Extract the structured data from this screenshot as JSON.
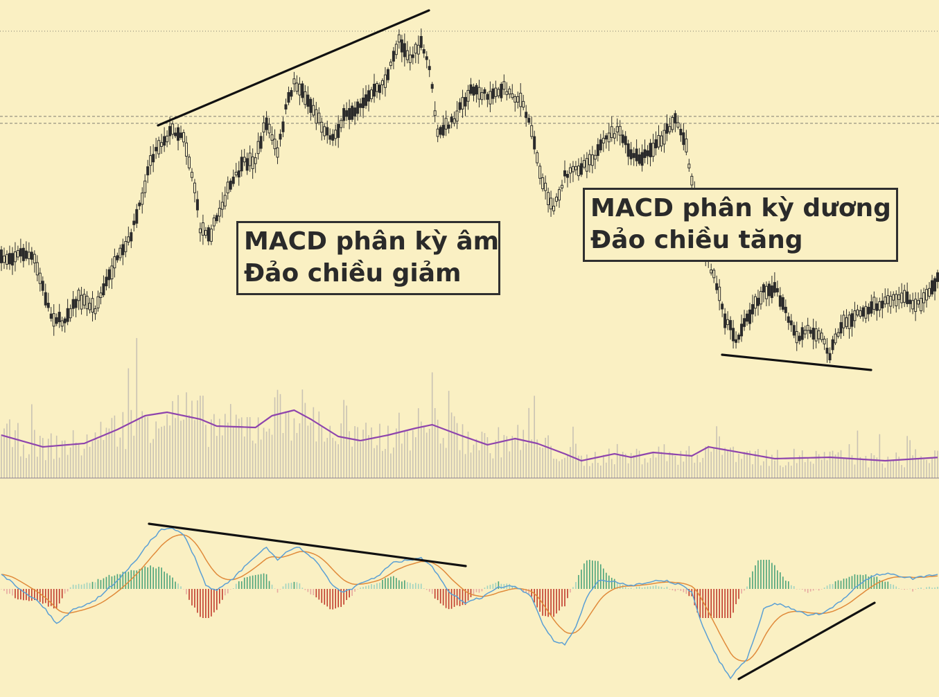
{
  "chart_data": [
    {
      "type": "candlestick",
      "panel": "price",
      "bars": 340,
      "horizontal_levels": [
        "dotted",
        "dashed",
        "dashed"
      ],
      "trendlines": [
        {
          "name": "bearish-divergence-price-highs",
          "direction": "rising",
          "bars": [
            57,
            155
          ]
        },
        {
          "name": "bullish-divergence-price-lows",
          "direction": "falling",
          "bars": [
            262,
            316
          ]
        }
      ],
      "colors": {
        "up": "#2b2b2b",
        "down": "#2b2b2b",
        "background": "#FAF0C3"
      }
    },
    {
      "type": "bar",
      "panel": "volume",
      "overlay": "volume moving average",
      "colors": {
        "bars": "#c9c2b3",
        "ma": "#8e44ad"
      }
    },
    {
      "type": "line",
      "panel": "macd",
      "series_lines": [
        "macd",
        "signal"
      ],
      "histogram": true,
      "trendlines": [
        {
          "name": "bearish-divergence-macd-highs",
          "direction": "falling",
          "bars": [
            54,
            168
          ]
        },
        {
          "name": "bullish-divergence-macd-lows",
          "direction": "rising",
          "bars": [
            266,
            316
          ]
        }
      ],
      "colors": {
        "macd": "#5a9fd4",
        "signal": "#e08a3a",
        "hist_pos": "#4aa37a",
        "hist_neg": "#c0392b"
      }
    }
  ],
  "annotations": {
    "bearish": {
      "line1": "MACD phân kỳ âm",
      "line2": "Đảo chiều giảm"
    },
    "bullish": {
      "line1": "MACD phân kỳ dương",
      "line2": "Đảo chiều tăng"
    }
  }
}
